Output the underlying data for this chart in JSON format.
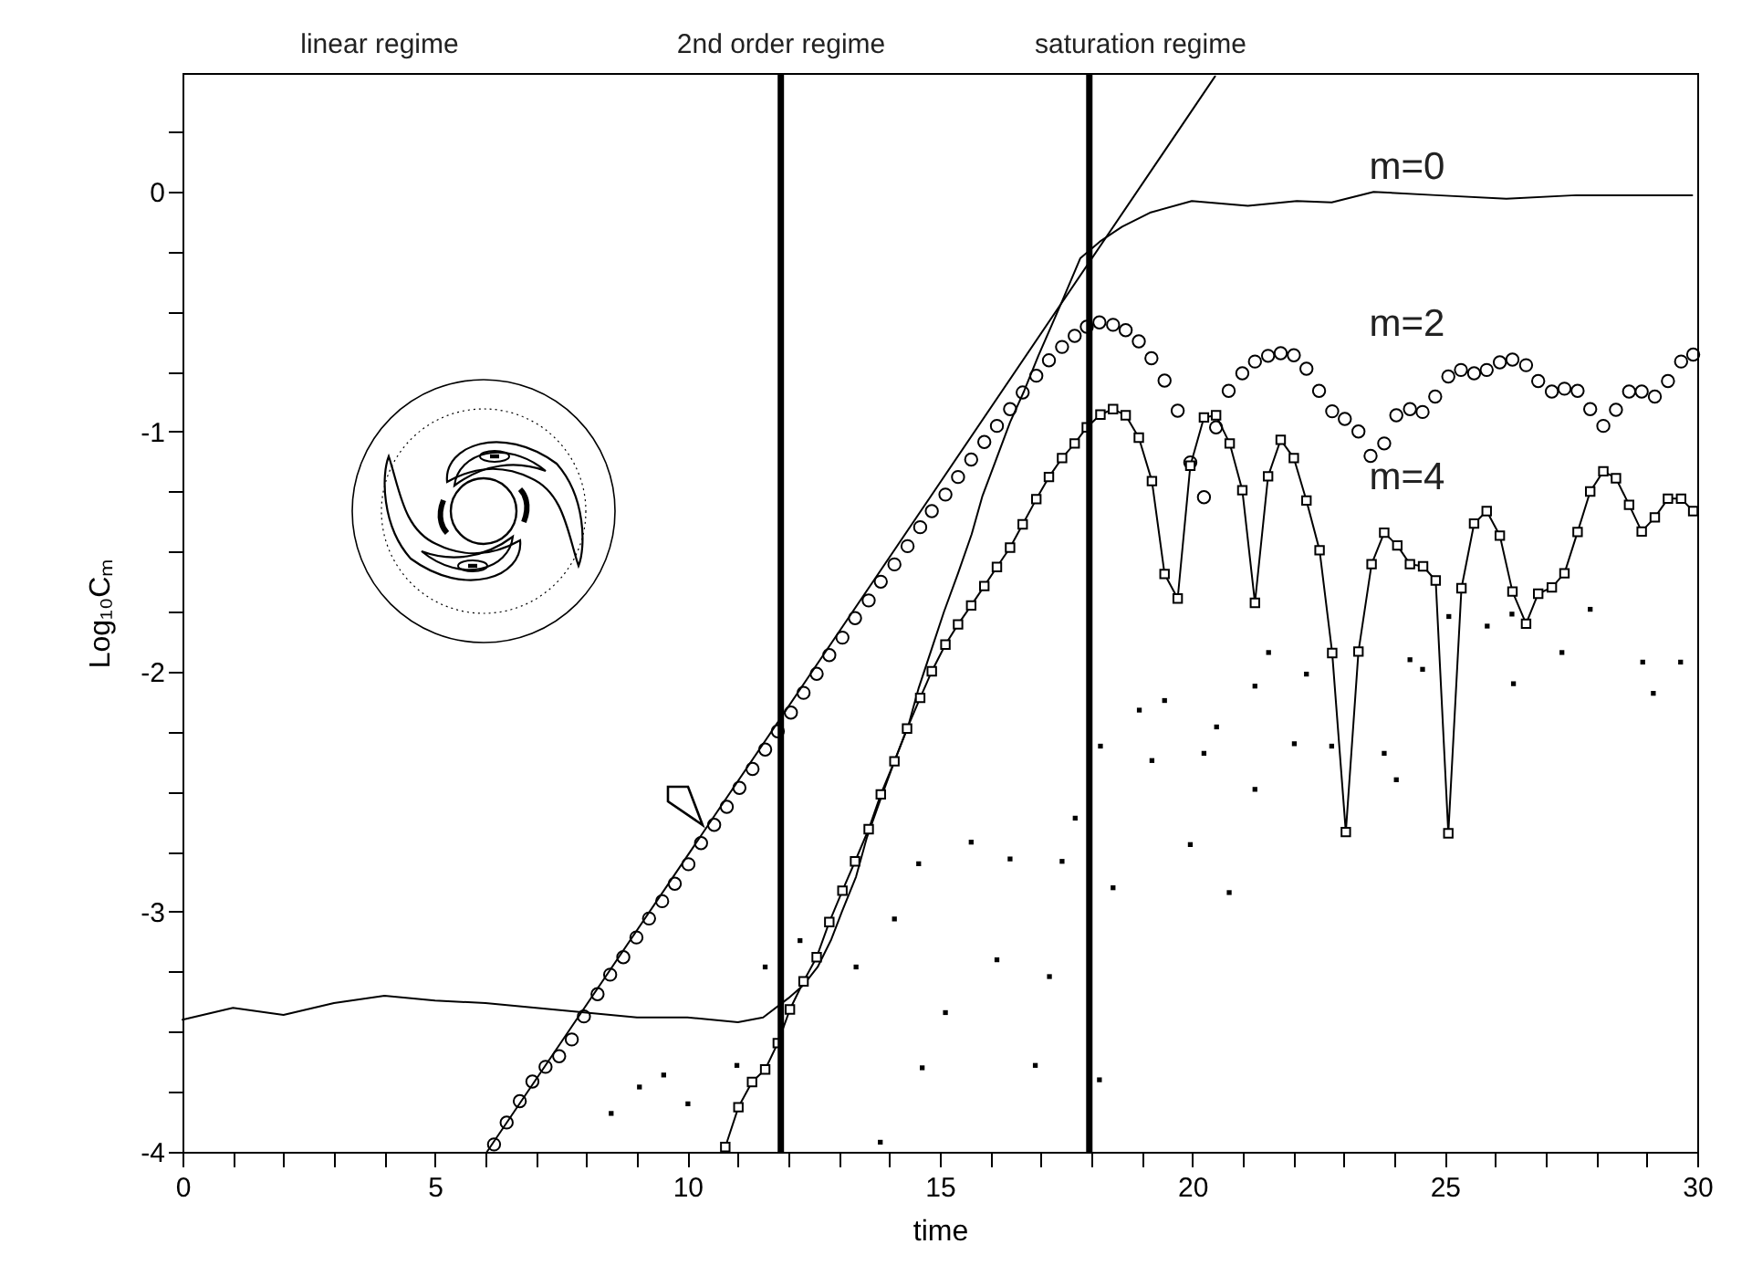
{
  "chart_data": {
    "type": "scatter",
    "xlabel": "time",
    "ylabel": "Log₁₀Cₘ",
    "xlim": [
      0,
      30
    ],
    "ylim": [
      -4,
      0.494
    ],
    "xticks": [
      0,
      {
        "value": 1,
        "label": null
      },
      {
        "value": 2,
        "label": null
      },
      {
        "value": 3,
        "label": null
      },
      {
        "value": 4,
        "label": null
      },
      5,
      {
        "value": 6,
        "label": null
      },
      {
        "value": 7,
        "label": null
      },
      {
        "value": 8,
        "label": null
      },
      {
        "value": 9,
        "label": null
      },
      10,
      {
        "value": 11,
        "label": null
      },
      {
        "value": 12,
        "label": null
      },
      {
        "value": 13,
        "label": null
      },
      {
        "value": 14,
        "label": null
      },
      15,
      {
        "value": 16,
        "label": null
      },
      {
        "value": 17,
        "label": null
      },
      {
        "value": 18,
        "label": null
      },
      {
        "value": 19,
        "label": null
      },
      20,
      {
        "value": 21,
        "label": null
      },
      {
        "value": 22,
        "label": null
      },
      {
        "value": 23,
        "label": null
      },
      {
        "value": 24,
        "label": null
      },
      25,
      {
        "value": 26,
        "label": null
      },
      {
        "value": 27,
        "label": null
      },
      {
        "value": 28,
        "label": null
      },
      {
        "value": 29,
        "label": null
      },
      30
    ],
    "yticks": [
      -4,
      {
        "value": -3.75,
        "label": null
      },
      {
        "value": -3.5,
        "label": null
      },
      {
        "value": -3.25,
        "label": null
      },
      -3,
      {
        "value": -2.75,
        "label": null
      },
      {
        "value": -2.5,
        "label": null
      },
      {
        "value": -2.25,
        "label": null
      },
      -2,
      {
        "value": -1.75,
        "label": null
      },
      {
        "value": -1.5,
        "label": null
      },
      {
        "value": -1.25,
        "label": null
      },
      -1,
      {
        "value": -0.75,
        "label": null
      },
      {
        "value": -0.5,
        "label": null
      },
      {
        "value": -0.25,
        "label": null
      },
      0,
      {
        "value": 0.25,
        "label": null
      }
    ],
    "ref_lines": [
      {
        "axis": "x",
        "value": 11.85,
        "color": "#000000"
      },
      {
        "axis": "x",
        "value": 17.96,
        "color": "#000000"
      }
    ],
    "annotations": [
      "linear regime",
      "2nd order regime",
      "saturation regime",
      "m=0",
      "m=2",
      "m=4"
    ],
    "series": [
      {
        "type": "line",
        "marker": "none",
        "color": "#000000",
        "x": [
          0,
          1,
          2,
          3,
          4,
          5,
          6,
          7,
          8,
          9,
          10,
          11,
          11.5,
          12.0,
          12.3,
          12.58,
          12.85,
          13.06,
          13.34,
          13.55,
          13.82,
          14.1,
          14.37,
          14.58,
          14.82,
          15.08,
          15.36,
          15.63,
          15.84,
          16.12,
          16.39,
          16.67,
          16.95,
          17.22,
          17.43,
          17.78,
          18.19,
          18.61,
          19.16,
          19.99,
          21.1,
          22.07,
          22.76,
          23.59,
          24.83,
          26.22,
          27.6,
          28.98,
          29.9
        ],
        "values": [
          -3.45,
          -3.4,
          -3.43,
          -3.38,
          -3.35,
          -3.37,
          -3.38,
          -3.4,
          -3.42,
          -3.44,
          -3.44,
          -3.46,
          -3.44,
          -3.36,
          -3.305,
          -3.23,
          -3.115,
          -3.0,
          -2.854,
          -2.694,
          -2.534,
          -2.373,
          -2.228,
          -2.068,
          -1.916,
          -1.751,
          -1.59,
          -1.427,
          -1.27,
          -1.113,
          -0.961,
          -0.83,
          -0.684,
          -0.554,
          -0.452,
          -0.278,
          -0.205,
          -0.146,
          -0.088,
          -0.039,
          -0.059,
          -0.039,
          -0.045,
          -0.001,
          -0.015,
          -0.03,
          -0.015,
          -0.015,
          -0.015
        ]
      },
      {
        "marker": "circle",
        "color": "#000000",
        "x": [
          6.17,
          6.42,
          6.68,
          6.93,
          7.19,
          7.46,
          7.71,
          7.95,
          8.22,
          8.47,
          8.73,
          8.99,
          9.24,
          9.5,
          9.75,
          10.02,
          10.27,
          10.53,
          10.78,
          11.03,
          11.29,
          11.54,
          11.79,
          12.05,
          12.3,
          12.56,
          12.81,
          13.07,
          13.32,
          13.59,
          13.83,
          14.1,
          14.36,
          14.61,
          14.84,
          15.11,
          15.36,
          15.62,
          15.88,
          16.13,
          16.39,
          16.64,
          16.91,
          17.16,
          17.42,
          17.67,
          17.91,
          18.16,
          18.43,
          18.68,
          18.94,
          19.19,
          19.45,
          19.71,
          19.96,
          20.23,
          20.47,
          20.72,
          20.99,
          21.24,
          21.5,
          21.75,
          22.01,
          22.26,
          22.51,
          22.77,
          23.02,
          23.29,
          23.53,
          23.8,
          24.04,
          24.31,
          24.56,
          24.81,
          25.07,
          25.32,
          25.58,
          25.83,
          26.09,
          26.34,
          26.61,
          26.85,
          27.12,
          27.37,
          27.63,
          27.88,
          28.14,
          28.39,
          28.65,
          28.9,
          29.16,
          29.42,
          29.68,
          29.92
        ],
        "values": [
          -3.969,
          -3.878,
          -3.789,
          -3.707,
          -3.646,
          -3.602,
          -3.532,
          -3.436,
          -3.343,
          -3.262,
          -3.189,
          -3.107,
          -3.028,
          -2.956,
          -2.883,
          -2.802,
          -2.714,
          -2.638,
          -2.563,
          -2.484,
          -2.405,
          -2.324,
          -2.248,
          -2.17,
          -2.088,
          -2.009,
          -1.931,
          -1.858,
          -1.777,
          -1.703,
          -1.625,
          -1.553,
          -1.477,
          -1.398,
          -1.331,
          -1.262,
          -1.189,
          -1.116,
          -1.043,
          -0.976,
          -0.906,
          -0.837,
          -0.767,
          -0.703,
          -0.647,
          -0.601,
          -0.563,
          -0.545,
          -0.555,
          -0.577,
          -0.624,
          -0.694,
          -0.787,
          -0.913,
          -1.128,
          -1.273,
          -0.982,
          -0.83,
          -0.757,
          -0.708,
          -0.684,
          -0.673,
          -0.682,
          -0.738,
          -0.83,
          -0.915,
          -0.947,
          -0.999,
          -1.101,
          -1.049,
          -0.932,
          -0.906,
          -0.918,
          -0.854,
          -0.77,
          -0.743,
          -0.757,
          -0.743,
          -0.711,
          -0.7,
          -0.723,
          -0.789,
          -0.833,
          -0.821,
          -0.83,
          -0.906,
          -0.976,
          -0.909,
          -0.833,
          -0.833,
          -0.854,
          -0.789,
          -0.708,
          -0.679
        ]
      },
      {
        "type": "line",
        "marker": "square",
        "color": "#000000",
        "x": [
          10.75,
          11.01,
          11.28,
          11.54,
          11.79,
          12.03,
          12.3,
          12.56,
          12.81,
          13.07,
          13.32,
          13.59,
          13.83,
          14.1,
          14.35,
          14.61,
          14.84,
          15.11,
          15.36,
          15.62,
          15.88,
          16.13,
          16.39,
          16.64,
          16.91,
          17.16,
          17.42,
          17.67,
          17.91,
          18.18,
          18.43,
          18.68,
          18.94,
          19.2,
          19.45,
          19.71,
          19.96,
          20.23,
          20.47,
          20.74,
          20.99,
          21.24,
          21.5,
          21.75,
          22.01,
          22.26,
          22.52,
          22.77,
          23.04,
          23.29,
          23.55,
          23.8,
          24.06,
          24.31,
          24.57,
          24.82,
          25.07,
          25.33,
          25.58,
          25.83,
          26.09,
          26.34,
          26.61,
          26.85,
          27.12,
          27.37,
          27.63,
          27.88,
          28.14,
          28.39,
          28.65,
          28.9,
          29.16,
          29.42,
          29.68,
          29.92
        ],
        "values": [
          -3.98,
          -3.814,
          -3.709,
          -3.657,
          -3.547,
          -3.407,
          -3.29,
          -3.189,
          -3.043,
          -2.912,
          -2.79,
          -2.656,
          -2.511,
          -2.373,
          -2.237,
          -2.109,
          -1.998,
          -1.887,
          -1.803,
          -1.724,
          -1.643,
          -1.564,
          -1.483,
          -1.386,
          -1.281,
          -1.189,
          -1.11,
          -1.049,
          -0.982,
          -0.929,
          -0.906,
          -0.932,
          -1.025,
          -1.206,
          -1.593,
          -1.695,
          -1.142,
          -0.941,
          -0.932,
          -1.049,
          -1.244,
          -1.713,
          -1.186,
          -1.034,
          -1.11,
          -1.287,
          -1.494,
          -1.922,
          -2.668,
          -1.916,
          -1.552,
          -1.421,
          -1.474,
          -1.552,
          -1.561,
          -1.62,
          -2.673,
          -1.652,
          -1.383,
          -1.331,
          -1.433,
          -1.666,
          -1.8,
          -1.675,
          -1.649,
          -1.59,
          -1.418,
          -1.249,
          -1.165,
          -1.194,
          -1.305,
          -1.416,
          -1.357,
          -1.279,
          -1.279,
          -1.331
        ]
      },
      {
        "marker": "square",
        "color": "#000000",
        "x": [
          8.49,
          9.05,
          9.53,
          10.01,
          10.98,
          11.54,
          12.23,
          13.34,
          13.82,
          14.1,
          14.58,
          14.65,
          15.62,
          16.39,
          17.42,
          15.11,
          16.13,
          17.17,
          16.89,
          17.68,
          18.18,
          18.95,
          19.45,
          20.48,
          21.24,
          21.51,
          22.26,
          22.76,
          23.8,
          24.56,
          25.08,
          25.84,
          26.33,
          27.32,
          27.88,
          28.92,
          29.67,
          19.2,
          20.23,
          22.02,
          24.04,
          18.43,
          19.96,
          20.73,
          21.24,
          18.16,
          24.31,
          26.36,
          29.13
        ],
        "values": [
          -3.84,
          -3.73,
          -3.68,
          -3.8,
          -3.64,
          -3.23,
          -3.12,
          -3.23,
          -3.96,
          -3.03,
          -2.8,
          -3.65,
          -2.71,
          -2.78,
          -2.79,
          -3.42,
          -3.2,
          -3.27,
          -3.64,
          -2.61,
          -2.31,
          -2.16,
          -2.12,
          -2.23,
          -2.06,
          -1.92,
          -2.01,
          -2.31,
          -2.34,
          -1.99,
          -1.77,
          -1.81,
          -1.76,
          -1.92,
          -1.74,
          -1.96,
          -1.96,
          -2.37,
          -2.34,
          -2.3,
          -2.45,
          -2.9,
          -2.72,
          -2.92,
          -2.49,
          -3.7,
          -1.95,
          -2.05,
          -2.09
        ]
      },
      {
        "type": "line",
        "marker": "none",
        "color": "#000000",
        "x": [
          6.03,
          20.45
        ],
        "values": [
          -4,
          0.48
        ]
      }
    ]
  }
}
